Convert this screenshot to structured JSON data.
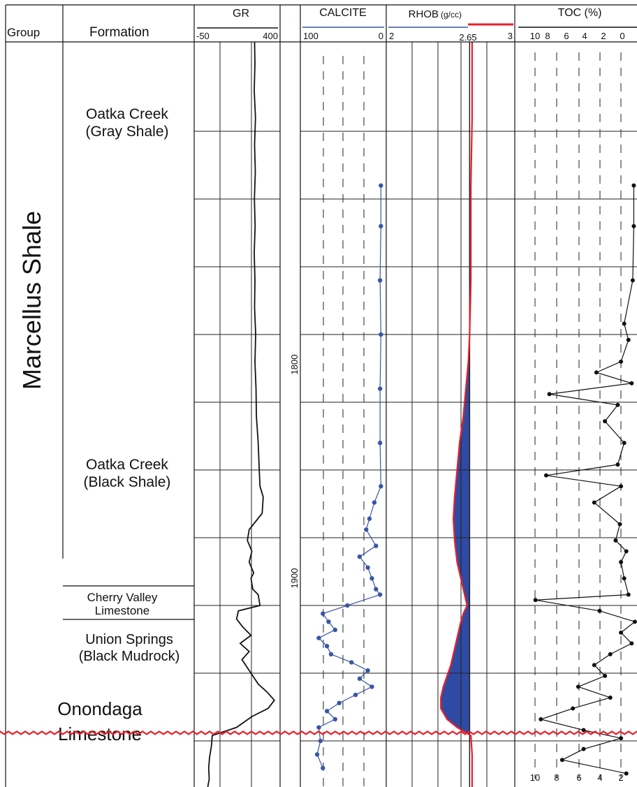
{
  "header": {
    "group": "Group",
    "formation": "Formation",
    "tracks": {
      "gr": {
        "name": "GR",
        "left": "-50",
        "right": "400"
      },
      "calcite": {
        "name": "CALCITE",
        "left": "100",
        "right": "0"
      },
      "rhob": {
        "name": "RHOB",
        "unit": "(g/cc)",
        "left": "2",
        "mid": "2.65",
        "right": "3"
      },
      "toc": {
        "name": "TOC (%)",
        "ticks": [
          "10",
          "8",
          "6",
          "4",
          "2",
          "0"
        ]
      }
    }
  },
  "group_name": "Marcellus Shale",
  "formations": {
    "oatka_gray": [
      "Oatka Creek",
      "(Gray Shale)"
    ],
    "oatka_black": [
      "Oatka Creek",
      "(Black Shale)"
    ],
    "cherry_valley": [
      "Cherry Valley",
      "Limestone"
    ],
    "union_springs": [
      "Union Springs",
      "(Black Mudrock)"
    ],
    "onondaga": [
      "Onondaga",
      "Limestone"
    ]
  },
  "depth_labels": [
    "1800",
    "1900"
  ],
  "footer_toc_ticks": [
    "10",
    "8",
    "6",
    "4",
    "2"
  ],
  "colors": {
    "gr": "#111111",
    "calcite": "#3a55a8",
    "rhob_curve": "#e8202a",
    "rhob_fill": "#2f4aa3",
    "toc": "#111111",
    "unconformity": "#e8202a",
    "grid": "#222222"
  },
  "chart_data": {
    "type": "well-log",
    "depth_axis": {
      "labels": [
        1800,
        1900
      ],
      "top_depth": 1692,
      "bottom_depth": 1967
    },
    "tracks": [
      {
        "name": "GR",
        "range": [
          -50,
          400
        ],
        "points": [
          [
            1692,
            270
          ],
          [
            1700,
            272
          ],
          [
            1710,
            268
          ],
          [
            1720,
            275
          ],
          [
            1730,
            270
          ],
          [
            1740,
            274
          ],
          [
            1750,
            269
          ],
          [
            1760,
            273
          ],
          [
            1770,
            268
          ],
          [
            1780,
            272
          ],
          [
            1790,
            270
          ],
          [
            1800,
            276
          ],
          [
            1810,
            272
          ],
          [
            1820,
            278
          ],
          [
            1830,
            280
          ],
          [
            1840,
            290
          ],
          [
            1850,
            296
          ],
          [
            1856,
            300
          ],
          [
            1860,
            318
          ],
          [
            1866,
            312
          ],
          [
            1872,
            240
          ],
          [
            1876,
            230
          ],
          [
            1880,
            255
          ],
          [
            1884,
            240
          ],
          [
            1888,
            265
          ],
          [
            1890,
            250
          ],
          [
            1894,
            260
          ],
          [
            1896,
            290
          ],
          [
            1900,
            300
          ],
          [
            1902,
            180
          ],
          [
            1905,
            170
          ],
          [
            1908,
            205
          ],
          [
            1911,
            250
          ],
          [
            1914,
            190
          ],
          [
            1917,
            240
          ],
          [
            1920,
            200
          ],
          [
            1923,
            230
          ],
          [
            1926,
            260
          ],
          [
            1929,
            290
          ],
          [
            1932,
            340
          ],
          [
            1935,
            380
          ],
          [
            1938,
            345
          ],
          [
            1941,
            255
          ],
          [
            1945,
            170
          ],
          [
            1948,
            35
          ],
          [
            1952,
            30
          ],
          [
            1956,
            20
          ],
          [
            1960,
            15
          ],
          [
            1964,
            18
          ],
          [
            1967,
            10
          ]
        ]
      },
      {
        "name": "CALCITE",
        "range": [
          100,
          0
        ],
        "points": [
          [
            1745,
            4
          ],
          [
            1760,
            4
          ],
          [
            1780,
            5
          ],
          [
            1800,
            4
          ],
          [
            1820,
            5
          ],
          [
            1840,
            5
          ],
          [
            1856,
            4
          ],
          [
            1862,
            12
          ],
          [
            1868,
            18
          ],
          [
            1872,
            22
          ],
          [
            1878,
            10
          ],
          [
            1882,
            30
          ],
          [
            1886,
            20
          ],
          [
            1890,
            15
          ],
          [
            1894,
            10
          ],
          [
            1896,
            5
          ],
          [
            1900,
            45
          ],
          [
            1903,
            75
          ],
          [
            1906,
            68
          ],
          [
            1909,
            60
          ],
          [
            1912,
            80
          ],
          [
            1915,
            70
          ],
          [
            1918,
            65
          ],
          [
            1921,
            40
          ],
          [
            1924,
            20
          ],
          [
            1927,
            30
          ],
          [
            1930,
            15
          ],
          [
            1933,
            35
          ],
          [
            1936,
            55
          ],
          [
            1939,
            70
          ],
          [
            1942,
            60
          ],
          [
            1945,
            80
          ],
          [
            1950,
            78
          ],
          [
            1955,
            82
          ],
          [
            1960,
            75
          ]
        ]
      },
      {
        "name": "RHOB",
        "range": [
          2,
          3
        ],
        "unit": "g/cc",
        "cutoff": 2.65,
        "points": [
          [
            1692,
            2.67
          ],
          [
            1720,
            2.67
          ],
          [
            1745,
            2.66
          ],
          [
            1780,
            2.66
          ],
          [
            1800,
            2.65
          ],
          [
            1810,
            2.64
          ],
          [
            1820,
            2.62
          ],
          [
            1830,
            2.6
          ],
          [
            1840,
            2.57
          ],
          [
            1850,
            2.55
          ],
          [
            1860,
            2.53
          ],
          [
            1868,
            2.52
          ],
          [
            1876,
            2.53
          ],
          [
            1884,
            2.55
          ],
          [
            1890,
            2.58
          ],
          [
            1896,
            2.61
          ],
          [
            1900,
            2.63
          ],
          [
            1903,
            2.6
          ],
          [
            1906,
            2.58
          ],
          [
            1910,
            2.56
          ],
          [
            1914,
            2.54
          ],
          [
            1918,
            2.52
          ],
          [
            1922,
            2.5
          ],
          [
            1926,
            2.47
          ],
          [
            1930,
            2.44
          ],
          [
            1934,
            2.42
          ],
          [
            1938,
            2.42
          ],
          [
            1942,
            2.47
          ],
          [
            1945,
            2.55
          ],
          [
            1948,
            2.66
          ],
          [
            1955,
            2.67
          ],
          [
            1967,
            2.67
          ]
        ]
      },
      {
        "name": "TOC",
        "unit": "%",
        "range": [
          10,
          0
        ],
        "points": [
          [
            1745,
            0.3
          ],
          [
            1760,
            0.3
          ],
          [
            1780,
            0.4
          ],
          [
            1796,
            1.2
          ],
          [
            1802,
            0.8
          ],
          [
            1810,
            1.5
          ],
          [
            1814,
            3.8
          ],
          [
            1818,
            0.5
          ],
          [
            1822,
            8.2
          ],
          [
            1826,
            1.8
          ],
          [
            1832,
            3.0
          ],
          [
            1840,
            1.2
          ],
          [
            1848,
            1.8
          ],
          [
            1852,
            8.5
          ],
          [
            1856,
            1.5
          ],
          [
            1862,
            4.0
          ],
          [
            1870,
            1.6
          ],
          [
            1876,
            2.0
          ],
          [
            1880,
            1.0
          ],
          [
            1884,
            1.5
          ],
          [
            1890,
            1.2
          ],
          [
            1896,
            0.8
          ],
          [
            1898,
            9.5
          ],
          [
            1902,
            3.5
          ],
          [
            1906,
            0.2
          ],
          [
            1910,
            1.5
          ],
          [
            1914,
            0.5
          ],
          [
            1918,
            2.5
          ],
          [
            1922,
            4.0
          ],
          [
            1926,
            3.0
          ],
          [
            1930,
            5.5
          ],
          [
            1934,
            2.5
          ],
          [
            1938,
            6.0
          ],
          [
            1942,
            9.0
          ],
          [
            1946,
            5.0
          ],
          [
            1949,
            1.5
          ],
          [
            1953,
            5.0
          ],
          [
            1957,
            7.0
          ],
          [
            1962,
            1.0
          ]
        ]
      }
    ]
  }
}
